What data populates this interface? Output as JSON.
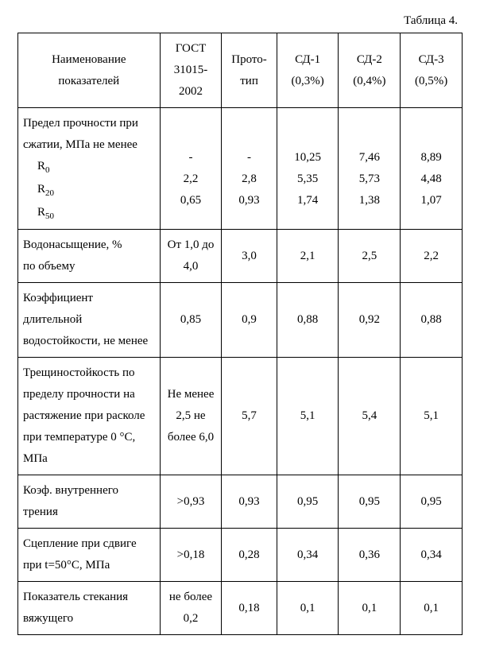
{
  "caption": "Таблица 4.",
  "headers": {
    "name": "Наименование показателей",
    "gost": "ГОСТ 31015-2002",
    "proto": "Прото-тип",
    "sd1": "СД-1 (0,3%)",
    "sd2": "СД-2 (0,4%)",
    "sd3": "СД-3 (0,5%)"
  },
  "rows": [
    {
      "name_html": "Предел прочности при сжатии, МПа не менее<span class=\"indent\">R<span class=\"sub\">0</span></span><span class=\"indent\">R<span class=\"sub\">20</span></span><span class=\"indent\">R<span class=\"sub\">50</span></span>",
      "gost": "-\n2,2\n0,65",
      "proto": "-\n2,8\n0,93",
      "sd1": "10,25\n5,35\n1,74",
      "sd2": "7,46\n5,73\n1,38",
      "sd3": "8,89\n4,48\n1,07",
      "pad_top": true
    },
    {
      "name_html": "Водонасыщение, %<br>по объему",
      "gost": "От 1,0 до 4,0",
      "proto": "3,0",
      "sd1": "2,1",
      "sd2": "2,5",
      "sd3": "2,2"
    },
    {
      "name_html": "Коэффициент длительной водостойкости, не менее",
      "justify": true,
      "gost": "0,85",
      "proto": "0,9",
      "sd1": "0,88",
      "sd2": "0,92",
      "sd3": "0,88"
    },
    {
      "name_html": "Трещиностойкость по пределу прочности на растяжение при расколе при температуре 0 °С, МПа",
      "justify": true,
      "gost": "Не менее 2,5 не более 6,0",
      "proto": "5,7",
      "sd1": "5,1",
      "sd2": "5,4",
      "sd3": "5,1"
    },
    {
      "name_html": "Коэф. внутреннего трения",
      "gost": ">0,93",
      "proto": "0,93",
      "sd1": "0,95",
      "sd2": "0,95",
      "sd3": "0,95"
    },
    {
      "name_html": "Сцепление при сдвиге при t=50°С, МПа",
      "gost": ">0,18",
      "proto": "0,28",
      "sd1": "0,34",
      "sd2": "0,36",
      "sd3": "0,34"
    },
    {
      "name_html": "Показатель стекания вяжущего",
      "justify": true,
      "gost": "не более 0,2",
      "proto": "0,18",
      "sd1": "0,1",
      "sd2": "0,1",
      "sd3": "0,1"
    }
  ]
}
